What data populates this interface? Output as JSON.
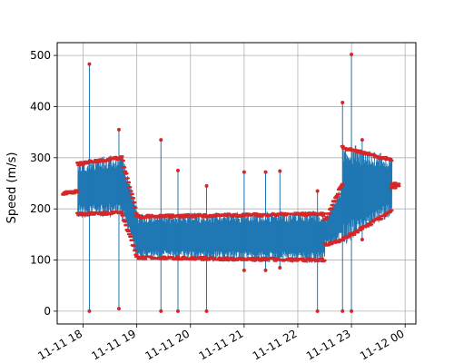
{
  "chart_data": {
    "type": "line",
    "title": "",
    "xlabel": "",
    "ylabel": "Speed (m/s)",
    "x_axis_type": "time",
    "xlim": [
      "2011-11-11 17:31",
      "2011-11-12 00:12"
    ],
    "ylim": [
      -25,
      525
    ],
    "grid": true,
    "xticks": [
      "2011-11-11 18:00",
      "2011-11-11 19:00",
      "2011-11-11 20:00",
      "2011-11-11 21:00",
      "2011-11-11 22:00",
      "2011-11-11 23:00",
      "2011-11-12 00:00"
    ],
    "xtick_labels": [
      "11-11 18",
      "11-11 19",
      "11-11 20",
      "11-11 21",
      "11-11 22",
      "11-11 23",
      "11-12 00"
    ],
    "yticks": [
      0,
      100,
      200,
      300,
      400,
      500
    ],
    "colors": {
      "line": "#1f77b4",
      "markers": "#d62728",
      "grid": "#b0b0b0"
    },
    "segments": [
      {
        "start": "2011-11-11 17:38",
        "end": "2011-11-11 17:54",
        "low_start": 229,
        "low_end": 232,
        "high_start": 231,
        "high_end": 237
      },
      {
        "start": "2011-11-11 17:54",
        "end": "2011-11-11 18:43",
        "low_start": 190,
        "low_end": 192,
        "high_start": 288,
        "high_end": 300
      },
      {
        "start": "2011-11-11 18:43",
        "end": "2011-11-11 19:00",
        "low_start": 192,
        "low_end": 110,
        "high_start": 300,
        "high_end": 190
      },
      {
        "start": "2011-11-11 19:00",
        "end": "2011-11-11 22:30",
        "low_start": 105,
        "low_end": 100,
        "high_start": 185,
        "high_end": 190
      },
      {
        "start": "2011-11-11 22:30",
        "end": "2011-11-11 22:50",
        "low_start": 130,
        "low_end": 140,
        "high_start": 175,
        "high_end": 250
      },
      {
        "start": "2011-11-11 22:50",
        "end": "2011-11-11 23:45",
        "low_start": 140,
        "low_end": 195,
        "high_start": 320,
        "high_end": 295
      },
      {
        "start": "2011-11-11 23:45",
        "end": "2011-11-11 23:53",
        "low_start": 243,
        "low_end": 243,
        "high_start": 248,
        "high_end": 248
      }
    ],
    "spikes": [
      {
        "t": "2011-11-11 18:07",
        "low": 0,
        "high": 483
      },
      {
        "t": "2011-11-11 18:40",
        "low": 5,
        "high": 355
      },
      {
        "t": "2011-11-11 19:27",
        "low": 0,
        "high": 335
      },
      {
        "t": "2011-11-11 19:46",
        "low": 0,
        "high": 275
      },
      {
        "t": "2011-11-11 20:18",
        "low": 0,
        "high": 245
      },
      {
        "t": "2011-11-11 21:00",
        "low": 80,
        "high": 272
      },
      {
        "t": "2011-11-11 21:24",
        "low": 80,
        "high": 272
      },
      {
        "t": "2011-11-11 21:40",
        "low": 85,
        "high": 274
      },
      {
        "t": "2011-11-11 22:22",
        "low": 0,
        "high": 235
      },
      {
        "t": "2011-11-11 22:50",
        "low": 0,
        "high": 408
      },
      {
        "t": "2011-11-11 23:00",
        "low": 0,
        "high": 502
      },
      {
        "t": "2011-11-11 23:12",
        "low": 140,
        "high": 335
      }
    ]
  }
}
